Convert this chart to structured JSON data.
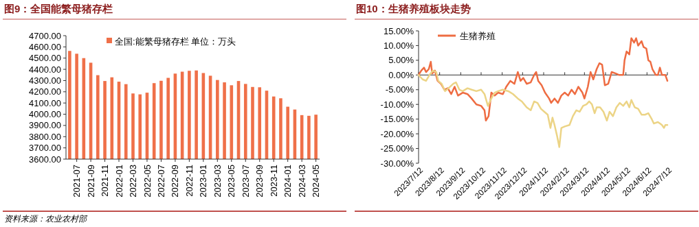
{
  "chart_data": [
    {
      "type": "bar",
      "title": "图9：全国能繁母猪存栏",
      "annotations": [
        "资料来源：农业农村部"
      ],
      "categories": [
        null,
        "2021-07",
        null,
        "2021-09",
        null,
        "2021-11",
        null,
        "2022-01",
        null,
        "2022-03",
        null,
        "2022-05",
        null,
        "2022-07",
        null,
        "2022-09",
        null,
        "2022-11",
        null,
        "2023-01",
        null,
        "2023-03",
        null,
        "2023-05",
        null,
        "2023-07",
        null,
        "2023-09",
        null,
        "2023-11",
        null,
        "2024-01",
        null,
        "2024-03",
        null,
        "2024-05"
      ],
      "series": [
        {
          "name": "全国:能繁母猪存栏 单位：万头",
          "color": "#ef7049",
          "values": [
            4564,
            4539,
            4500,
            4459,
            4348,
            4296,
            4329,
            4290,
            4268,
            4185,
            4177,
            4192,
            4277,
            4298,
            4324,
            4362,
            4379,
            4387,
            4390,
            4367,
            4343,
            4305,
            4284,
            4258,
            4296,
            4270,
            4243,
            4240,
            4210,
            4158,
            4142,
            4067,
            4042,
            3992,
            3986,
            3996
          ]
        }
      ],
      "ylim": [
        3600,
        4700
      ],
      "yticks": [
        {
          "value": 3600,
          "label": "3600.00"
        },
        {
          "value": 3700,
          "label": "3700.00"
        },
        {
          "value": 3800,
          "label": "3800.00"
        },
        {
          "value": 3900,
          "label": "3900.00"
        },
        {
          "value": 4000,
          "label": "4000.00"
        },
        {
          "value": 4100,
          "label": "4100.00"
        },
        {
          "value": 4200,
          "label": "4200.00"
        },
        {
          "value": 4300,
          "label": "4300.00"
        },
        {
          "value": 4400,
          "label": "4400.00"
        },
        {
          "value": 4500,
          "label": "4500.00"
        },
        {
          "value": 4600,
          "label": "4600.00"
        },
        {
          "value": 4700,
          "label": "4700.00"
        }
      ],
      "legend": "top"
    },
    {
      "type": "line",
      "title": "图10：生猪养殖板块走势",
      "series": [
        {
          "name": "生猪养殖",
          "color": "#ee6c42",
          "x": [
            "2023-07-12",
            "2023-07-16",
            "2023-07-20",
            "2023-07-23",
            "2023-07-27",
            "2023-07-30",
            "2023-08-01",
            "2023-08-05",
            "2023-08-09",
            "2023-08-14",
            "2023-08-19",
            "2023-08-24",
            "2023-08-29",
            "2023-09-03",
            "2023-09-08",
            "2023-09-15",
            "2023-09-22",
            "2023-09-28",
            "2023-10-05",
            "2023-10-12",
            "2023-10-17",
            "2023-10-19",
            "2023-10-23",
            "2023-10-27",
            "2023-11-01",
            "2023-11-06",
            "2023-11-13",
            "2023-11-18",
            "2023-11-24",
            "2023-11-30",
            "2023-12-05",
            "2023-12-09",
            "2023-12-13",
            "2023-12-18",
            "2023-12-24",
            "2023-12-29",
            "2024-01-01",
            "2024-01-04",
            "2024-01-09",
            "2024-01-14",
            "2024-01-20",
            "2024-01-23",
            "2024-01-28",
            "2024-02-02",
            "2024-02-07",
            "2024-02-12",
            "2024-02-17",
            "2024-02-22",
            "2024-02-27",
            "2024-03-03",
            "2024-03-09",
            "2024-03-12",
            "2024-03-17",
            "2024-03-21",
            "2024-03-25",
            "2024-03-30",
            "2024-04-03",
            "2024-04-07",
            "2024-04-11",
            "2024-04-16",
            "2024-04-21",
            "2024-04-27",
            "2024-05-02",
            "2024-05-08",
            "2024-05-10",
            "2024-05-13",
            "2024-05-17",
            "2024-05-20",
            "2024-05-24",
            "2024-05-27",
            "2024-05-30",
            "2024-06-04",
            "2024-06-07",
            "2024-06-11",
            "2024-06-14",
            "2024-06-17",
            "2024-06-20",
            "2024-06-25",
            "2024-06-28",
            "2024-07-01",
            "2024-07-04",
            "2024-07-09",
            "2024-07-12"
          ],
          "values": [
            0,
            1.5,
            2.5,
            1,
            2,
            4.5,
            0.5,
            1.5,
            -2,
            -3,
            -5,
            -4.5,
            -6.5,
            -4,
            -7,
            -6,
            -6.5,
            -8,
            -10,
            -10.5,
            -12,
            -15.5,
            -14,
            -6,
            -7,
            -6,
            -6.5,
            -4,
            -2,
            -3,
            1,
            -2,
            -1,
            -3,
            -2.5,
            0,
            1,
            -2,
            -3.5,
            -6,
            -8,
            -9.5,
            -8,
            -9.5,
            -7,
            -6,
            -7,
            -5,
            -6.5,
            -4,
            -6,
            -8,
            -4,
            1,
            -1.5,
            2,
            4,
            3.5,
            -3.5,
            -3,
            1,
            0.5,
            0,
            0,
            5,
            8,
            7,
            12.5,
            11,
            12.5,
            10,
            11.5,
            9.5,
            9,
            5,
            4.5,
            2,
            0,
            0,
            2.5,
            0,
            0,
            -2
          ]
        },
        {
          "color": "#ecd486",
          "x": [
            "2023-07-12",
            "2023-07-18",
            "2023-07-23",
            "2023-07-28",
            "2023-08-02",
            "2023-08-07",
            "2023-08-10",
            "2023-08-15",
            "2023-08-20",
            "2023-08-25",
            "2023-09-01",
            "2023-09-05",
            "2023-09-10",
            "2023-09-15",
            "2023-09-22",
            "2023-09-28",
            "2023-10-05",
            "2023-10-12",
            "2023-10-17",
            "2023-10-22",
            "2023-10-27",
            "2023-11-01",
            "2023-11-06",
            "2023-11-13",
            "2023-11-21",
            "2023-11-28",
            "2023-12-05",
            "2023-12-11",
            "2023-12-18",
            "2023-12-24",
            "2023-12-29",
            "2024-01-03",
            "2024-01-08",
            "2024-01-13",
            "2024-01-18",
            "2024-01-22",
            "2024-01-25",
            "2024-01-28",
            "2024-02-01",
            "2024-02-04",
            "2024-02-07",
            "2024-02-12",
            "2024-02-19",
            "2024-02-24",
            "2024-02-29",
            "2024-03-05",
            "2024-03-10",
            "2024-03-15",
            "2024-03-19",
            "2024-03-23",
            "2024-03-27",
            "2024-03-30",
            "2024-04-04",
            "2024-04-09",
            "2024-04-14",
            "2024-04-18",
            "2024-04-23",
            "2024-04-28",
            "2024-05-03",
            "2024-05-08",
            "2024-05-13",
            "2024-05-17",
            "2024-05-20",
            "2024-05-25",
            "2024-05-30",
            "2024-06-04",
            "2024-06-09",
            "2024-06-14",
            "2024-06-19",
            "2024-06-22",
            "2024-06-28",
            "2024-07-01",
            "2024-07-04",
            "2024-07-07",
            "2024-07-09",
            "2024-07-12"
          ],
          "values": [
            0,
            -1.5,
            -2,
            0,
            1.5,
            1,
            -2,
            -3,
            -5.5,
            -4.5,
            -3,
            -2.5,
            -5,
            -5.5,
            -4.5,
            -5,
            -5.5,
            -5,
            -6.5,
            -10.5,
            -8,
            -6,
            -5.5,
            -5,
            -5.5,
            -6.5,
            -8,
            -9,
            -11,
            -12,
            -9,
            -9.5,
            -11.5,
            -12.5,
            -13.5,
            -18,
            -14.5,
            -17,
            -21,
            -24.5,
            -18,
            -17.5,
            -17,
            -14,
            -12,
            -12.5,
            -10.5,
            -10,
            -9,
            -10,
            -13,
            -11,
            -11,
            -12.5,
            -15.5,
            -12.5,
            -14,
            -11,
            -9.5,
            -10.5,
            -9,
            -11,
            -8.5,
            -11,
            -11.5,
            -13.5,
            -13.5,
            -13,
            -15,
            -16.5,
            -16,
            -16.5,
            -17,
            -18,
            -17,
            -17
          ]
        }
      ],
      "xlim": [
        "2023-07-12",
        "2024-07-12"
      ],
      "xticks": [
        {
          "value": "2023-07-12",
          "label": "2023/7/12"
        },
        {
          "value": "2023-08-12",
          "label": "2023/8/12"
        },
        {
          "value": "2023-09-12",
          "label": "2023/9/12"
        },
        {
          "value": "2023-10-12",
          "label": "2023/10/12"
        },
        {
          "value": "2023-11-12",
          "label": "2023/11/12"
        },
        {
          "value": "2023-12-12",
          "label": "2023/12/12"
        },
        {
          "value": "2024-01-12",
          "label": "2024/1/12"
        },
        {
          "value": "2024-02-12",
          "label": "2024/2/12"
        },
        {
          "value": "2024-03-12",
          "label": "2024/3/12"
        },
        {
          "value": "2024-04-12",
          "label": "2024/4/12"
        },
        {
          "value": "2024-05-12",
          "label": "2024/5/12"
        },
        {
          "value": "2024-06-12",
          "label": "2024/6/12"
        },
        {
          "value": "2024-07-12",
          "label": "2024/7/12"
        }
      ],
      "ylim": [
        -30,
        15
      ],
      "yticks": [
        {
          "value": -30,
          "label": "-30.00%"
        },
        {
          "value": -25,
          "label": "-25.00%"
        },
        {
          "value": -20,
          "label": "-20.00%"
        },
        {
          "value": -15,
          "label": "-15.00%"
        },
        {
          "value": -10,
          "label": "-10.00%"
        },
        {
          "value": -5,
          "label": "-5.00%"
        },
        {
          "value": 0,
          "label": "0.00%"
        },
        {
          "value": 5,
          "label": "5.00%"
        },
        {
          "value": 10,
          "label": "10.00%"
        },
        {
          "value": 15,
          "label": "15.00%"
        }
      ],
      "legend": "top"
    }
  ]
}
